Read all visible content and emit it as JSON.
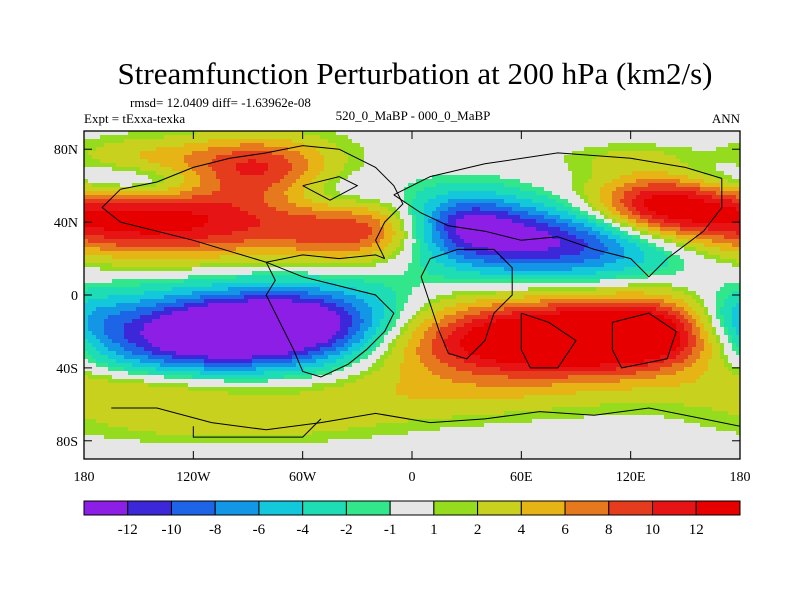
{
  "chart_data": {
    "type": "heatmap",
    "title": "Streamfunction Perturbation at 200 hPa (km2/s)",
    "stats_text": "rmsd= 12.0409 diff= -1.63962e-08",
    "left_label": "Expt = tExxa-texka",
    "center_label": "520_0_MaBP - 000_0_MaBP",
    "right_label": "ANN",
    "x_ticks": [
      {
        "value": -180,
        "label": "180"
      },
      {
        "value": -120,
        "label": "120W"
      },
      {
        "value": -60,
        "label": "60W"
      },
      {
        "value": 0,
        "label": "0"
      },
      {
        "value": 60,
        "label": "60E"
      },
      {
        "value": 120,
        "label": "120E"
      },
      {
        "value": 180,
        "label": "180"
      }
    ],
    "y_ticks": [
      {
        "value": 80,
        "label": "80N"
      },
      {
        "value": 40,
        "label": "40N"
      },
      {
        "value": 0,
        "label": "0"
      },
      {
        "value": -40,
        "label": "40S"
      },
      {
        "value": -80,
        "label": "80S"
      }
    ],
    "xlim": [
      -180,
      180
    ],
    "ylim": [
      -90,
      90
    ],
    "colorbar": {
      "labels": [
        "-12",
        "-10",
        "-8",
        "-6",
        "-4",
        "-2",
        "-1",
        "1",
        "2",
        "4",
        "6",
        "8",
        "10",
        "12"
      ],
      "thresholds": [
        -12,
        -10,
        -8,
        -6,
        -4,
        -2,
        -1,
        1,
        2,
        4,
        6,
        8,
        10,
        12
      ],
      "colors": [
        "#8c1ee6",
        "#3c28d8",
        "#1e64e6",
        "#1496e6",
        "#14c8dc",
        "#1edcb4",
        "#32e68c",
        "#e6e6e6",
        "#96dc1e",
        "#c8d21e",
        "#e6b414",
        "#e6781e",
        "#e63c1e",
        "#e61414",
        "#e60000"
      ]
    },
    "centers": [
      {
        "lon": -155,
        "lat": 40,
        "value": 14,
        "rlon": 70,
        "rlat": 14
      },
      {
        "lon": -20,
        "lat": 35,
        "value": 10,
        "rlon": 35,
        "rlat": 12
      },
      {
        "lon": -85,
        "lat": 70,
        "value": 10,
        "rlon": 30,
        "rlat": 12
      },
      {
        "lon": 135,
        "lat": 50,
        "value": 10,
        "rlon": 25,
        "rlat": 12
      },
      {
        "lon": 65,
        "lat": -25,
        "value": 16,
        "rlon": 60,
        "rlat": 15
      },
      {
        "lon": 140,
        "lat": -20,
        "value": 12,
        "rlon": 40,
        "rlat": 14
      },
      {
        "lon": -120,
        "lat": -22,
        "value": -15,
        "rlon": 55,
        "rlat": 15
      },
      {
        "lon": -60,
        "lat": -15,
        "value": -12,
        "rlon": 40,
        "rlat": 14
      },
      {
        "lon": 80,
        "lat": 30,
        "value": -14,
        "rlon": 55,
        "rlat": 14
      },
      {
        "lon": 25,
        "lat": 40,
        "value": -10,
        "rlon": 25,
        "rlat": 12
      },
      {
        "lon": 0,
        "lat": -55,
        "value": 3,
        "rlon": 70,
        "rlat": 10
      },
      {
        "lon": -150,
        "lat": -52,
        "value": 4,
        "rlon": 45,
        "rlat": 9
      },
      {
        "lon": 175,
        "lat": -15,
        "value": -7,
        "rlon": 20,
        "rlat": 12
      },
      {
        "lon": -155,
        "lat": 75,
        "value": 4,
        "rlon": 30,
        "rlat": 8
      },
      {
        "lon": -150,
        "lat": 62,
        "value": -5,
        "rlon": 30,
        "rlat": 7
      },
      {
        "lon": -45,
        "lat": 55,
        "value": -4,
        "rlon": 25,
        "rlat": 10
      },
      {
        "lon": 160,
        "lat": 72,
        "value": -3,
        "rlon": 30,
        "rlat": 8
      },
      {
        "lon": 130,
        "lat": 75,
        "value": 3,
        "rlon": 30,
        "rlat": 6
      },
      {
        "lon": -100,
        "lat": -70,
        "value": 3,
        "rlon": 60,
        "rlat": 8
      }
    ]
  }
}
